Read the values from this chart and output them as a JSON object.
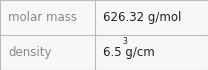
{
  "rows": [
    {
      "label": "molar mass",
      "value_base": "626.32 g/mol",
      "superscript": null
    },
    {
      "label": "density",
      "value_base": "6.5 g/cm",
      "superscript": "3"
    }
  ],
  "bg_color": "#f7f7f7",
  "border_color": "#bbbbbb",
  "label_color": "#888888",
  "value_color": "#222222",
  "font_size": 8.5,
  "col_split": 0.455,
  "figsize": [
    2.08,
    0.7
  ],
  "dpi": 100
}
